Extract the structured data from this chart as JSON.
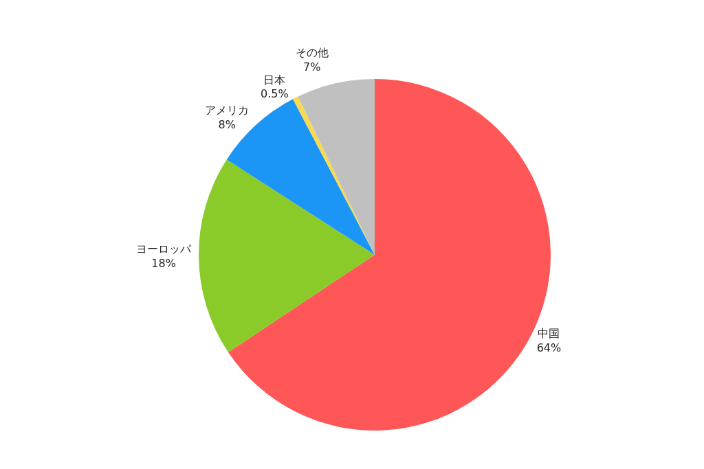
{
  "chart_data": {
    "type": "pie",
    "categories": [
      "中国",
      "ヨーロッパ",
      "アメリカ",
      "日本",
      "その他"
    ],
    "values": [
      64,
      18,
      8,
      0.5,
      7
    ],
    "value_labels": [
      "64%",
      "18%",
      "8%",
      "0.5%",
      "7%"
    ],
    "colors": [
      "#ff5757",
      "#8acb2a",
      "#1b96f7",
      "#f8d94f",
      "#c0c0c0"
    ],
    "legend": false
  }
}
